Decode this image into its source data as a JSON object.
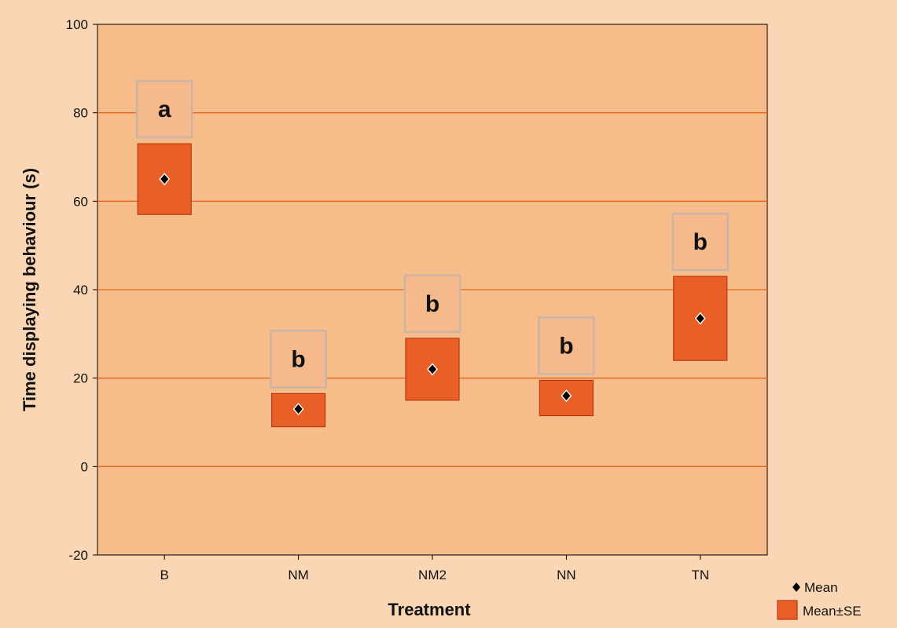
{
  "chart_data": {
    "type": "box",
    "title": "",
    "xlabel": "Treatment",
    "ylabel": "Time displaying behaviour (s)",
    "ylim": [
      -20,
      100
    ],
    "yticks": [
      "-20",
      "0",
      "20",
      "40",
      "60",
      "80",
      "100"
    ],
    "categories": [
      "B",
      "NM",
      "NM2",
      "NN",
      "TN"
    ],
    "mean": [
      65,
      13,
      22,
      16,
      33.5
    ],
    "se_lower": [
      57,
      9,
      15,
      11.5,
      24
    ],
    "se_upper": [
      73,
      16.5,
      29,
      19.5,
      43
    ],
    "significance_letters": [
      "a",
      "b",
      "b",
      "b",
      "b"
    ],
    "legend": [
      "Mean",
      "Mean±SE"
    ],
    "legend_position": "bottom-right",
    "grid": true,
    "colors": {
      "page_background": "#fbd6b4",
      "plot_background": "#f6bc8a",
      "gridline": "#e8641e",
      "box_fill": "#e86028",
      "box_edge": "#b83a10",
      "letter_box_fill": "#f5b98b",
      "letter_box_edge": "#c9b4a6",
      "mean_marker": "#000000"
    }
  }
}
